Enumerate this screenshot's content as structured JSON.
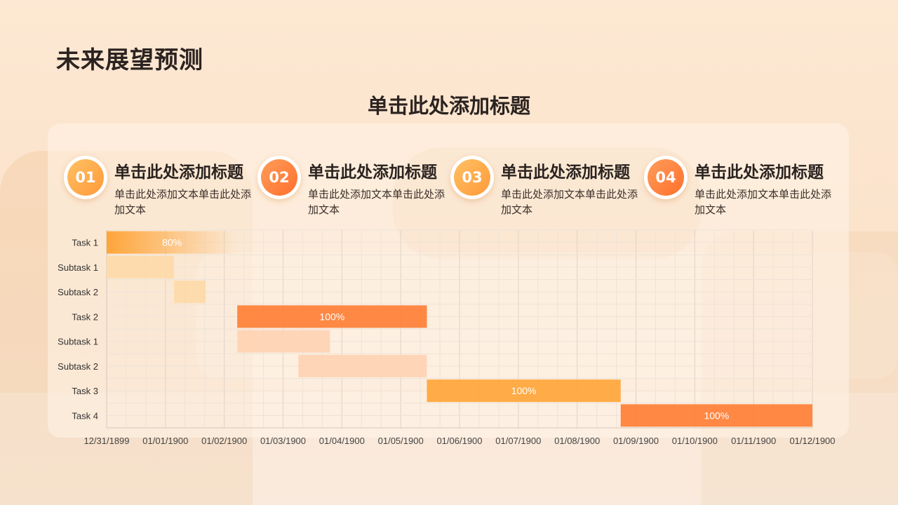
{
  "page_title": "未来展望预测",
  "subtitle": "单击此处添加标题",
  "colors": {
    "accent_dark": "#ff7f36",
    "accent_light": "#ffa53a",
    "subtask_peach": "#ffd2b3",
    "subtask_yellow": "#fdd9a8",
    "text_dark": "#2b2320"
  },
  "cards": [
    {
      "num": "01",
      "title": "单击此处添加标题",
      "text": "单击此处添加文本单击此处添加文本",
      "color": "#ffa53a"
    },
    {
      "num": "02",
      "title": "单击此处添加标题",
      "text": "单击此处添加文本单击此处添加文本",
      "color": "#ff7f36"
    },
    {
      "num": "03",
      "title": "单击此处添加标题",
      "text": "单击此处添加文本单击此处添加文本",
      "color": "#ffa53a"
    },
    {
      "num": "04",
      "title": "单击此处添加标题",
      "text": "单击此处添加文本单击此处添加文本",
      "color": "#ff7f36"
    }
  ],
  "chart_data": {
    "type": "bar",
    "subtype": "gantt",
    "xlim": [
      "1899-12-31",
      "1900-12-01"
    ],
    "x_ticks": [
      "12/31/1899",
      "01/01/1900",
      "01/02/1900",
      "01/03/1900",
      "01/04/1900",
      "01/05/1900",
      "01/06/1900",
      "01/07/1900",
      "01/08/1900",
      "01/09/1900",
      "01/10/1900",
      "01/11/1900",
      "01/12/1900"
    ],
    "grid": true,
    "tasks": [
      {
        "label": "Task 1",
        "start": "1899-12-31",
        "end": "1900-03-03",
        "progress_label": "80%",
        "color": "#ffa53a",
        "gradient_fade": true
      },
      {
        "label": "Subtask 1",
        "start": "1899-12-31",
        "end": "1900-02-01",
        "color": "#fdd9a8"
      },
      {
        "label": "Subtask 2",
        "start": "1900-02-01",
        "end": "1900-02-16",
        "color": "#fdd9a8"
      },
      {
        "label": "Task 2",
        "start": "1900-03-03",
        "end": "1900-06-01",
        "progress_label": "100%",
        "color": "#ff7f36"
      },
      {
        "label": "Subtask 1",
        "start": "1900-03-03",
        "end": "1900-04-16",
        "color": "#ffd2b3"
      },
      {
        "label": "Subtask 2",
        "start": "1900-04-01",
        "end": "1900-06-01",
        "color": "#ffd2b3"
      },
      {
        "label": "Task 3",
        "start": "1900-06-01",
        "end": "1900-09-01",
        "progress_label": "100%",
        "color": "#ffa53a"
      },
      {
        "label": "Task 4",
        "start": "1900-09-01",
        "end": "1900-12-01",
        "progress_label": "100%",
        "color": "#ff7f36"
      }
    ]
  }
}
